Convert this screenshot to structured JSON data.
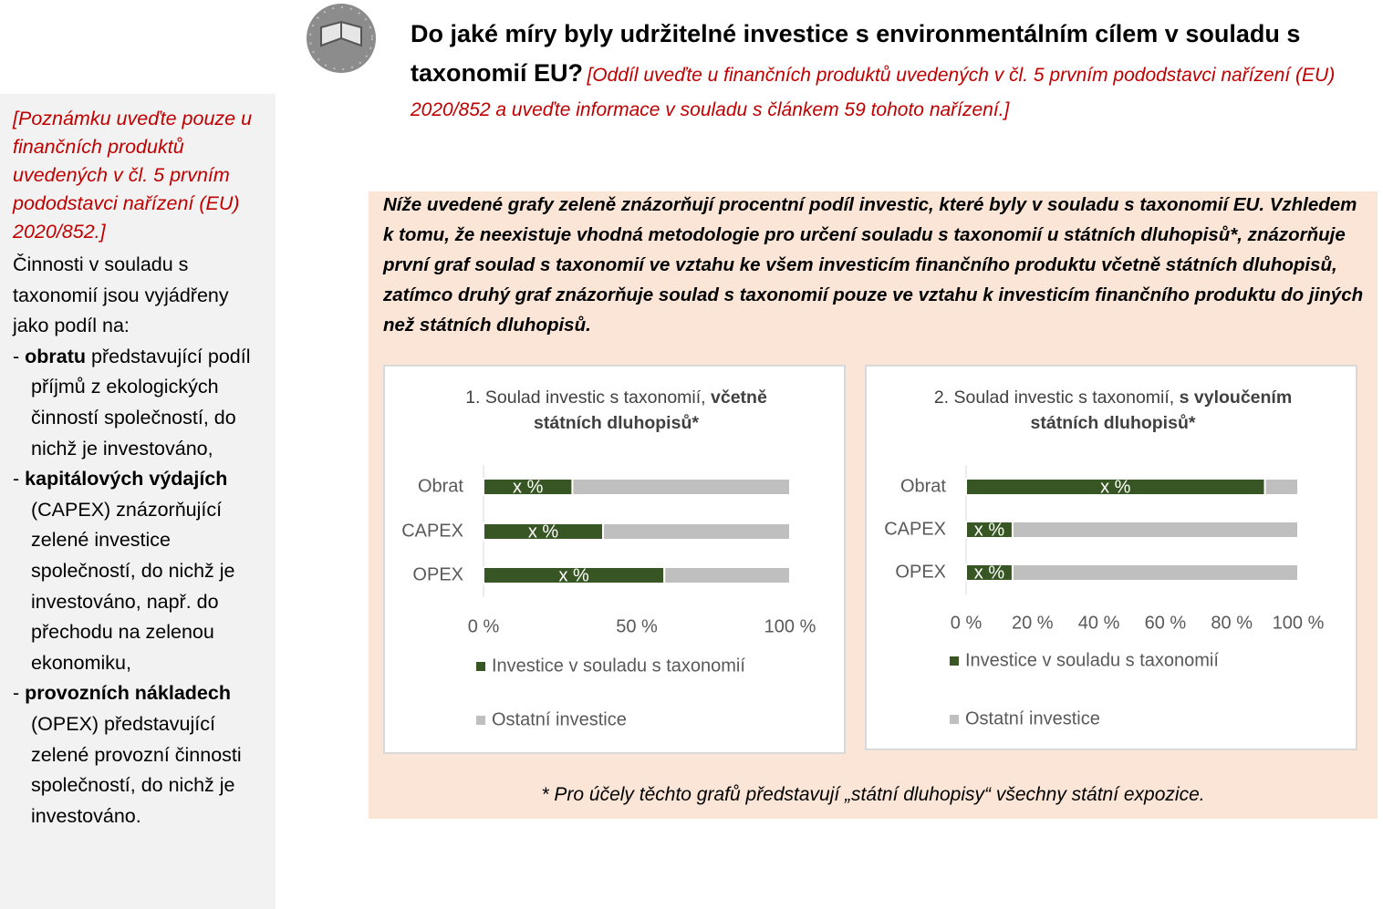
{
  "sidebar": {
    "note": "[Poznámku uveďte pouze u finančních produktů uvedených v čl. 5 prvním pododstavci nařízení (EU) 2020/852.]",
    "intro": "Činnosti v souladu s taxonomií jsou vyjádřeny jako podíl na:",
    "items": [
      {
        "bullet": "-",
        "bold": "obratu",
        "text": "představující podíl příjmů z ekologických činností společností, do nichž je investováno,"
      },
      {
        "bullet": "-",
        "bold": "kapitálových výdajích",
        "text": "(CAPEX) znázorňující zelené investice společností, do nichž je investováno, např. do přechodu na zelenou ekonomiku,"
      },
      {
        "bullet": "-",
        "bold": "provozních nákladech",
        "text": "(OPEX) představující zelené provozní činnosti společností, do nichž je investováno."
      }
    ]
  },
  "header": {
    "title": "Do jaké míry byly udržitelné investice s environmentálním cílem v souladu s taxonomií EU?",
    "note": "[Oddíl uveďte u finančních produktů uvedených v čl. 5 prvním pododstavci nařízení (EU) 2020/852 a uveďte informace v souladu s článkem 59 tohoto nařízení.]"
  },
  "intro": "Níže uvedené grafy zeleně znázorňují procentní podíl investic, které byly v souladu s taxonomií EU. Vzhledem k tomu, že neexistuje vhodná metodologie pro určení souladu s taxonomií u státních dluhopisů*, znázorňuje první graf soulad s taxonomií ve vztahu ke všem investicím finančního produktu včetně státních dluhopisů, zatímco druhý graf znázorňuje soulad s taxonomií pouze ve vztahu k investicím finančního produktu do jiných než státních dluhopisů.",
  "footnote": "* Pro účely těchto grafů představují „státní dluhopisy“ všechny státní expozice.",
  "chart_data": [
    {
      "type": "bar",
      "orientation": "horizontal",
      "stacked": true,
      "title": "1. Soulad investic s taxonomií,",
      "title_bold": "včetně státních dluhopisů*",
      "categories": [
        "Obrat",
        "CAPEX",
        "OPEX"
      ],
      "series": [
        {
          "name": "Investice v souladu s taxonomií",
          "color": "#375623",
          "values": [
            29,
            39,
            59
          ],
          "value_labels": [
            "x %",
            "x %",
            "x %"
          ]
        },
        {
          "name": "Ostatní investice",
          "color": "#bfbfbf",
          "values": [
            71,
            61,
            41
          ]
        }
      ],
      "xlim": [
        0,
        100
      ],
      "xticks": [
        {
          "value": 0,
          "label": "0 %"
        },
        {
          "value": 50,
          "label": "50 %"
        },
        {
          "value": 100,
          "label": "100 %"
        }
      ],
      "legend": "bottom"
    },
    {
      "type": "bar",
      "orientation": "horizontal",
      "stacked": true,
      "title": "2. Soulad investic s taxonomií,",
      "title_bold": "s vyloučením státních dluhopisů*",
      "categories": [
        "Obrat",
        "CAPEX",
        "OPEX"
      ],
      "series": [
        {
          "name": "Investice v souladu s taxonomií",
          "color": "#375623",
          "values": [
            90,
            14,
            14
          ],
          "value_labels": [
            "x %",
            "x %",
            "x %"
          ]
        },
        {
          "name": "Ostatní investice",
          "color": "#bfbfbf",
          "values": [
            10,
            86,
            86
          ]
        }
      ],
      "xlim": [
        0,
        100
      ],
      "xticks": [
        {
          "value": 0,
          "label": "0 %"
        },
        {
          "value": 20,
          "label": "20 %"
        },
        {
          "value": 40,
          "label": "40 %"
        },
        {
          "value": 60,
          "label": "60 %"
        },
        {
          "value": 80,
          "label": "80 %"
        },
        {
          "value": 100,
          "label": "100 %"
        }
      ],
      "legend": "bottom"
    }
  ]
}
